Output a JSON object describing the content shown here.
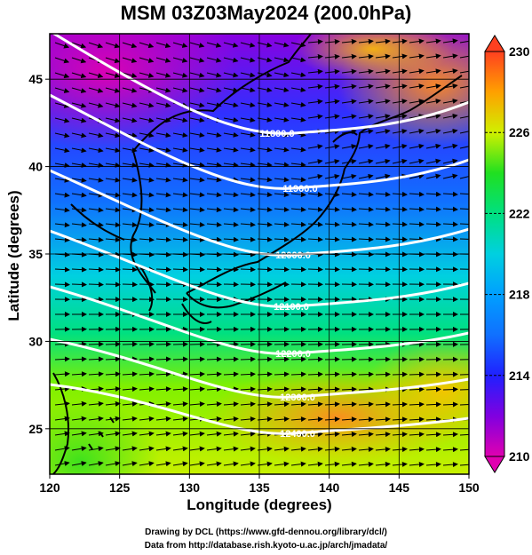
{
  "title": "MSM 03Z03May2024 (200.0hPa)",
  "xlabel": "Longitude (degrees)",
  "ylabel": "Latitude  (degrees)",
  "x_ticks": [
    "120",
    "125",
    "130",
    "135",
    "140",
    "145",
    "150"
  ],
  "y_ticks": [
    "25",
    "30",
    "35",
    "40",
    "45"
  ],
  "colorbar": {
    "ticks": [
      "210",
      "214",
      "218",
      "222",
      "226",
      "230"
    ],
    "min": 210,
    "max": 230,
    "colors": [
      "#e000b0",
      "#8000e0",
      "#2020ff",
      "#1070ff",
      "#00d0e0",
      "#00e080",
      "#20e020",
      "#90f000",
      "#e0f000",
      "#ffc000",
      "#ff8020",
      "#ff4020"
    ]
  },
  "contours": [
    {
      "label": "11800.0"
    },
    {
      "label": "11900.0"
    },
    {
      "label": "12000.0"
    },
    {
      "label": "12100.0"
    },
    {
      "label": "12200.0"
    },
    {
      "label": "12300.0"
    },
    {
      "label": "12400.0"
    }
  ],
  "credits": {
    "line1": "Drawing by DCL (https://www.gfd-dennou.org/library/dcl/)",
    "line2": "Data from http://database.rish.kyoto-u.ac.jp/arch/jmadata/"
  },
  "chart_data": {
    "type": "heatmap",
    "title": "MSM 03Z03May2024 (200.0hPa)",
    "xlabel": "Longitude (degrees)",
    "ylabel": "Latitude  (degrees)",
    "xlim": [
      120,
      150
    ],
    "ylim": [
      22.4,
      47.6
    ],
    "colorbar_range": [
      210,
      230
    ],
    "contour_levels": [
      11800,
      11900,
      12000,
      12100,
      12200,
      12300,
      12400
    ],
    "legend": "right"
  }
}
